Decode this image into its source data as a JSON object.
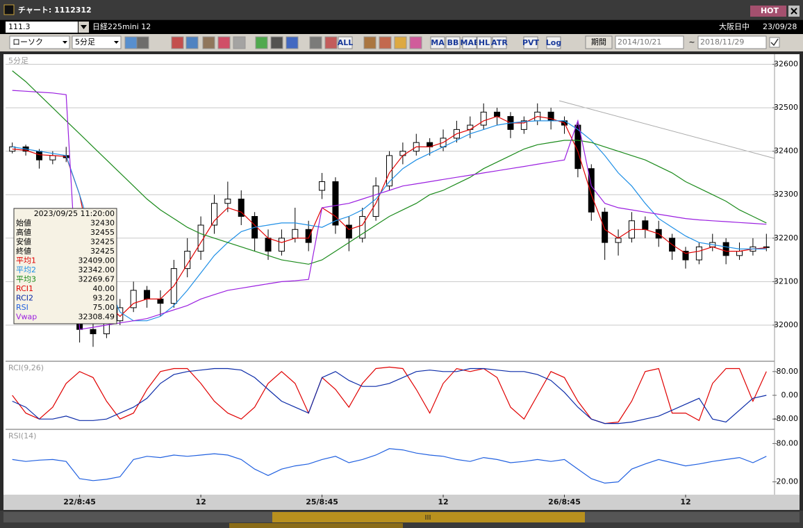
{
  "window": {
    "title": "チャート: 1112312",
    "badge": "HOT"
  },
  "header": {
    "code": "111.3",
    "instrument": "日経225mini 12",
    "session": "大阪日中",
    "date": "23/09/28"
  },
  "toolbar": {
    "chart_style": "ローソク",
    "interval": "5分足",
    "icon_labels": [
      "ALL",
      "MA",
      "BB",
      "MAE",
      "HL",
      "ATR",
      "PVT",
      "Log"
    ],
    "period_button": "期間",
    "date_from": "2014/10/21",
    "separator": "~",
    "date_to": "2018/11/29"
  },
  "info_box": {
    "datetime": "2023/09/25  11:20:00",
    "ohlc_labels": [
      "始値",
      "高値",
      "安値",
      "終値"
    ],
    "ohlc_values": [
      "32430",
      "32455",
      "32425",
      "32425"
    ],
    "indicator_values": [
      "32409.00",
      "32342.00",
      "32269.67",
      "40.00",
      "93.20",
      "75.00",
      "32308.49"
    ]
  },
  "chart_data": [
    {
      "type": "candlestick",
      "title": "5分足",
      "categories": [
        null,
        null,
        null,
        null,
        null,
        "22/8:45",
        null,
        null,
        null,
        null,
        null,
        null,
        null,
        null,
        "12",
        null,
        null,
        null,
        null,
        null,
        null,
        null,
        null,
        "25/8:45",
        null,
        null,
        null,
        null,
        null,
        null,
        null,
        null,
        "12",
        null,
        null,
        null,
        null,
        null,
        null,
        null,
        null,
        "26/8:45",
        null,
        null,
        null,
        null,
        null,
        null,
        null,
        null,
        "12",
        null,
        null,
        null,
        null,
        null,
        null
      ],
      "open": [
        32400,
        32410,
        32400,
        32380,
        32390,
        32030,
        31990,
        31980,
        32010,
        32040,
        32080,
        32060,
        32050,
        32130,
        32170,
        32230,
        32280,
        32290,
        32250,
        32200,
        32170,
        32200,
        32220,
        32310,
        32330,
        32230,
        32200,
        32250,
        32320,
        32390,
        32400,
        32420,
        32410,
        32430,
        32450,
        32460,
        32490,
        32480,
        32450,
        32470,
        32490,
        32470,
        32460,
        32360,
        32260,
        32190,
        32200,
        32240,
        32220,
        32200,
        32170,
        32150,
        32180,
        32190,
        32160,
        32170,
        32180
      ],
      "high": [
        32420,
        32415,
        32405,
        32400,
        32410,
        32060,
        32020,
        32030,
        32060,
        32100,
        32090,
        32080,
        32150,
        32200,
        32250,
        32300,
        32330,
        32310,
        32260,
        32220,
        32220,
        32270,
        32240,
        32350,
        32340,
        32250,
        32270,
        32340,
        32400,
        32420,
        32440,
        32430,
        32450,
        32470,
        32480,
        32510,
        32500,
        32490,
        32480,
        32510,
        32500,
        32480,
        32470,
        32370,
        32270,
        32220,
        32260,
        32250,
        32240,
        32210,
        32180,
        32190,
        32210,
        32200,
        32190,
        32200,
        32210
      ],
      "low": [
        32395,
        32390,
        32360,
        32370,
        32375,
        31960,
        31950,
        31970,
        32000,
        32030,
        32040,
        32020,
        32040,
        32110,
        32150,
        32210,
        32260,
        32230,
        32170,
        32150,
        32160,
        32190,
        32170,
        32290,
        32210,
        32170,
        32190,
        32240,
        32310,
        32370,
        32390,
        32390,
        32400,
        32420,
        32430,
        32450,
        32460,
        32430,
        32440,
        32460,
        32450,
        32440,
        32340,
        32240,
        32150,
        32160,
        32190,
        32200,
        32180,
        32150,
        32130,
        32140,
        32170,
        32140,
        32150,
        32160,
        32170
      ],
      "close": [
        32410,
        32400,
        32380,
        32390,
        32385,
        31990,
        31980,
        32010,
        32040,
        32080,
        32060,
        32050,
        32130,
        32170,
        32230,
        32280,
        32290,
        32250,
        32200,
        32170,
        32200,
        32220,
        32190,
        32330,
        32230,
        32200,
        32250,
        32320,
        32390,
        32400,
        32420,
        32410,
        32430,
        32450,
        32460,
        32490,
        32480,
        32450,
        32470,
        32490,
        32470,
        32460,
        32360,
        32260,
        32190,
        32200,
        32240,
        32220,
        32200,
        32170,
        32150,
        32180,
        32190,
        32160,
        32170,
        32180,
        32180
      ],
      "up_color": "#ffffff",
      "down_color": "#000000",
      "series": [
        {
          "name": "平均1",
          "color": "#e00000",
          "values": [
            32405,
            32402,
            32392,
            32390,
            32388,
            32300,
            32150,
            32050,
            32020,
            32050,
            32060,
            32060,
            32090,
            32140,
            32190,
            32240,
            32270,
            32260,
            32230,
            32200,
            32190,
            32200,
            32200,
            32270,
            32250,
            32220,
            32230,
            32280,
            32350,
            32390,
            32410,
            32410,
            32420,
            32440,
            32450,
            32470,
            32480,
            32465,
            32465,
            32480,
            32475,
            32465,
            32400,
            32300,
            32220,
            32200,
            32220,
            32220,
            32210,
            32185,
            32165,
            32170,
            32180,
            32170,
            32170,
            32175,
            32178
          ]
        },
        {
          "name": "平均2",
          "color": "#1e8fe6",
          "values": [
            32410,
            32405,
            32400,
            32395,
            32390,
            32300,
            32200,
            32100,
            32030,
            32010,
            32010,
            32020,
            32045,
            32080,
            32120,
            32160,
            32190,
            32215,
            32225,
            32230,
            32235,
            32235,
            32230,
            32225,
            32240,
            32250,
            32265,
            32290,
            32330,
            32360,
            32380,
            32395,
            32410,
            32425,
            32440,
            32450,
            32460,
            32465,
            32468,
            32470,
            32470,
            32470,
            32450,
            32425,
            32390,
            32350,
            32320,
            32280,
            32245,
            32225,
            32205,
            32190,
            32185,
            32180,
            32175,
            32175,
            32175
          ]
        },
        {
          "name": "平均3",
          "color": "#1a8a1a",
          "values": [
            32585,
            32560,
            32530,
            32500,
            32470,
            32440,
            32410,
            32380,
            32350,
            32320,
            32290,
            32265,
            32245,
            32225,
            32210,
            32200,
            32190,
            32180,
            32170,
            32160,
            32150,
            32145,
            32140,
            32150,
            32170,
            32190,
            32210,
            32230,
            32250,
            32265,
            32280,
            32300,
            32310,
            32325,
            32340,
            32360,
            32375,
            32390,
            32405,
            32415,
            32420,
            32425,
            32425,
            32420,
            32410,
            32400,
            32390,
            32380,
            32365,
            32350,
            32330,
            32315,
            32300,
            32285,
            32265,
            32250,
            32235
          ]
        },
        {
          "name": "Vwap",
          "color": "#9a1ee0",
          "values": [
            32540,
            32538,
            32536,
            32534,
            32530,
            31990,
            31995,
            32000,
            32005,
            32010,
            32015,
            32025,
            32035,
            32045,
            32060,
            32070,
            32080,
            32085,
            32090,
            32095,
            32100,
            32102,
            32105,
            32270,
            32275,
            32280,
            32290,
            32300,
            32310,
            32320,
            32325,
            32330,
            32335,
            32340,
            32345,
            32350,
            32355,
            32360,
            32365,
            32370,
            32375,
            32380,
            32470,
            32320,
            32280,
            32270,
            32265,
            32260,
            32255,
            32250,
            32245,
            32242,
            32240,
            32238,
            32236,
            32234,
            32232
          ]
        }
      ],
      "ylim": [
        31920,
        32620
      ],
      "yticks": [
        32000,
        32100,
        32200,
        32300,
        32400,
        32500,
        32600
      ],
      "grid": true
    },
    {
      "type": "line",
      "title": "RCI(9,26)",
      "series": [
        {
          "name": "RCI1",
          "color": "#e00000",
          "values": [
            0,
            -60,
            -80,
            -40,
            40,
            80,
            60,
            -20,
            -80,
            -60,
            20,
            80,
            90,
            90,
            40,
            -20,
            -60,
            -80,
            -40,
            40,
            80,
            40,
            -60,
            60,
            20,
            -40,
            40,
            90,
            95,
            90,
            20,
            -60,
            40,
            90,
            80,
            90,
            60,
            -40,
            -80,
            0,
            80,
            60,
            -20,
            -80,
            -95,
            -90,
            -20,
            80,
            90,
            -60,
            -60,
            -85,
            40,
            90,
            90,
            -20,
            80
          ]
        },
        {
          "name": "RCI2",
          "color": "#0a2aa8",
          "values": [
            -20,
            -40,
            -80,
            -80,
            -70,
            -85,
            -85,
            -80,
            -60,
            -40,
            -10,
            40,
            70,
            80,
            85,
            90,
            90,
            85,
            60,
            20,
            -20,
            -40,
            -60,
            60,
            80,
            50,
            30,
            30,
            40,
            60,
            80,
            85,
            80,
            80,
            90,
            90,
            85,
            80,
            80,
            70,
            50,
            10,
            -40,
            -80,
            -95,
            -95,
            -90,
            -80,
            -70,
            -50,
            -30,
            -10,
            -80,
            -90,
            -50,
            -10,
            0
          ]
        }
      ],
      "ylim": [
        -110,
        110
      ],
      "yticks": [
        {
          "value": 80,
          "label": "80.00"
        },
        {
          "value": 0,
          "label": "0.00"
        },
        {
          "value": -80,
          "label": "-80.00"
        }
      ],
      "grid": false
    },
    {
      "type": "line",
      "title": "RSI(14)",
      "series": [
        {
          "name": "RSI",
          "color": "#2060e0",
          "values": [
            55,
            52,
            54,
            55,
            52,
            25,
            22,
            24,
            28,
            55,
            60,
            58,
            62,
            60,
            62,
            64,
            62,
            55,
            40,
            30,
            40,
            45,
            48,
            55,
            60,
            50,
            55,
            62,
            72,
            70,
            65,
            62,
            60,
            55,
            52,
            58,
            55,
            50,
            52,
            55,
            52,
            55,
            40,
            25,
            18,
            20,
            40,
            48,
            55,
            50,
            45,
            48,
            52,
            55,
            58,
            50,
            60
          ]
        }
      ],
      "ylim": [
        0,
        100
      ],
      "yticks": [
        {
          "value": 80,
          "label": "80.00"
        },
        {
          "value": 20,
          "label": "20.00"
        }
      ],
      "grid": false
    }
  ]
}
